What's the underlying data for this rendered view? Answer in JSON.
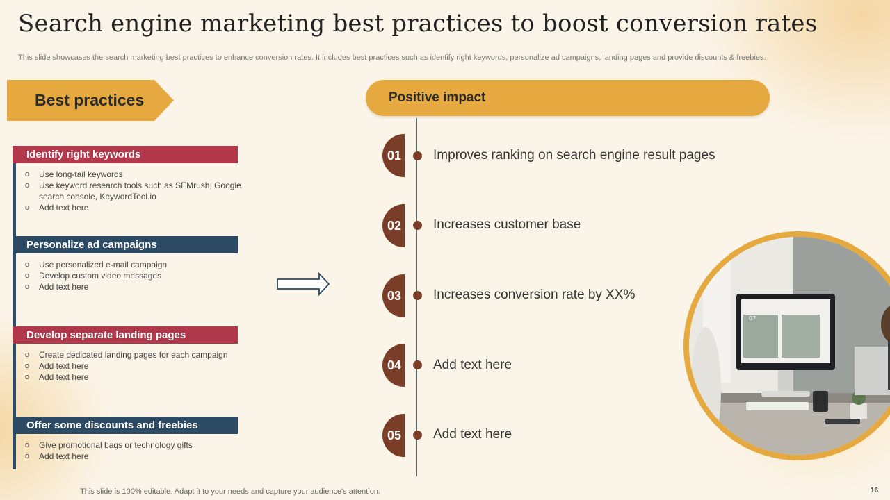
{
  "title": "Search engine marketing best practices to boost conversion rates",
  "subtitle": "This slide showcases the search marketing best practices to enhance conversion rates. It includes best practices such as identify right keywords, personalize ad campaigns, landing pages and provide discounts & freebies.",
  "best_practices_label": "Best practices",
  "positive_impact_label": "Positive impact",
  "practices": [
    {
      "heading": "Identify right keywords",
      "color": "#b0384a",
      "items": [
        "Use long-tail keywords",
        "Use keyword research tools such as SEMrush, Google search console, KeywordTool.io",
        "Add text here"
      ]
    },
    {
      "heading": "Personalize ad campaigns",
      "color": "#2c4a63",
      "items": [
        "Use personalized e-mail campaign",
        "Develop custom video messages",
        "Add text here"
      ]
    },
    {
      "heading": "Develop separate landing pages",
      "color": "#b0384a",
      "items": [
        "Create dedicated landing pages for each campaign",
        "Add text here",
        "Add text here"
      ]
    },
    {
      "heading": "Offer some discounts and freebies",
      "color": "#2c4a63",
      "items": [
        "Give promotional bags or technology gifts",
        "Add text here"
      ]
    }
  ],
  "impacts": [
    {
      "number": "01",
      "text": "Improves ranking on search engine result pages"
    },
    {
      "number": "02",
      "text": "Increases customer base"
    },
    {
      "number": "03",
      "text": "Increases conversion rate by XX%"
    },
    {
      "number": "04",
      "text": "Add text here"
    },
    {
      "number": "05",
      "text": "Add text here"
    }
  ],
  "footer": "This slide is 100% editable. Adapt it to your needs and capture your audience's attention.",
  "page_number": "16",
  "colors": {
    "accent": "#e6a93f",
    "red": "#b0384a",
    "navy": "#2c4a63",
    "brown": "#7a3e28",
    "background": "#fbf5e9"
  }
}
